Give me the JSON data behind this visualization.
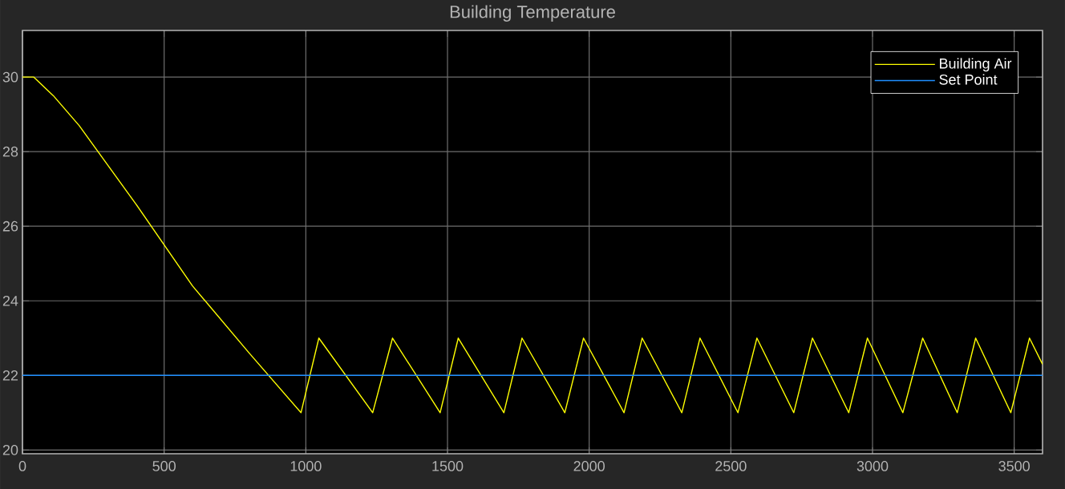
{
  "chart_data": {
    "type": "line",
    "title": "Building Temperature",
    "xlim": [
      0,
      3600
    ],
    "ylim": [
      19.9,
      31.25
    ],
    "xticks": [
      0,
      500,
      1000,
      1500,
      2000,
      2500,
      3000,
      3500
    ],
    "yticks": [
      20,
      22,
      24,
      26,
      28,
      30
    ],
    "grid": true,
    "legend": "top right",
    "marker": "none",
    "line_style": "solid",
    "series": [
      {
        "name": "Building Air",
        "color": "#ffff00",
        "x": [
          0,
          40,
          109,
          200,
          400,
          600,
          800,
          983,
          1046,
          1236,
          1306,
          1474,
          1538,
          1699,
          1763,
          1914,
          1980,
          2123,
          2187,
          2327,
          2391,
          2525,
          2592,
          2722,
          2788,
          2916,
          2982,
          3107,
          3177,
          3299,
          3364,
          3488,
          3554,
          3600
        ],
        "values": [
          30,
          30,
          29.5,
          28.7,
          26.6,
          24.4,
          22.6,
          21,
          23,
          21,
          23,
          21,
          23,
          21,
          23,
          21,
          23,
          21,
          23,
          21,
          23,
          21,
          23,
          21,
          23,
          21,
          23,
          21,
          23,
          21,
          23,
          21,
          23,
          22.3
        ]
      },
      {
        "name": "Set Point",
        "color": "#1f8fff",
        "x": [
          0,
          3600
        ],
        "values": [
          22,
          22
        ]
      }
    ]
  }
}
